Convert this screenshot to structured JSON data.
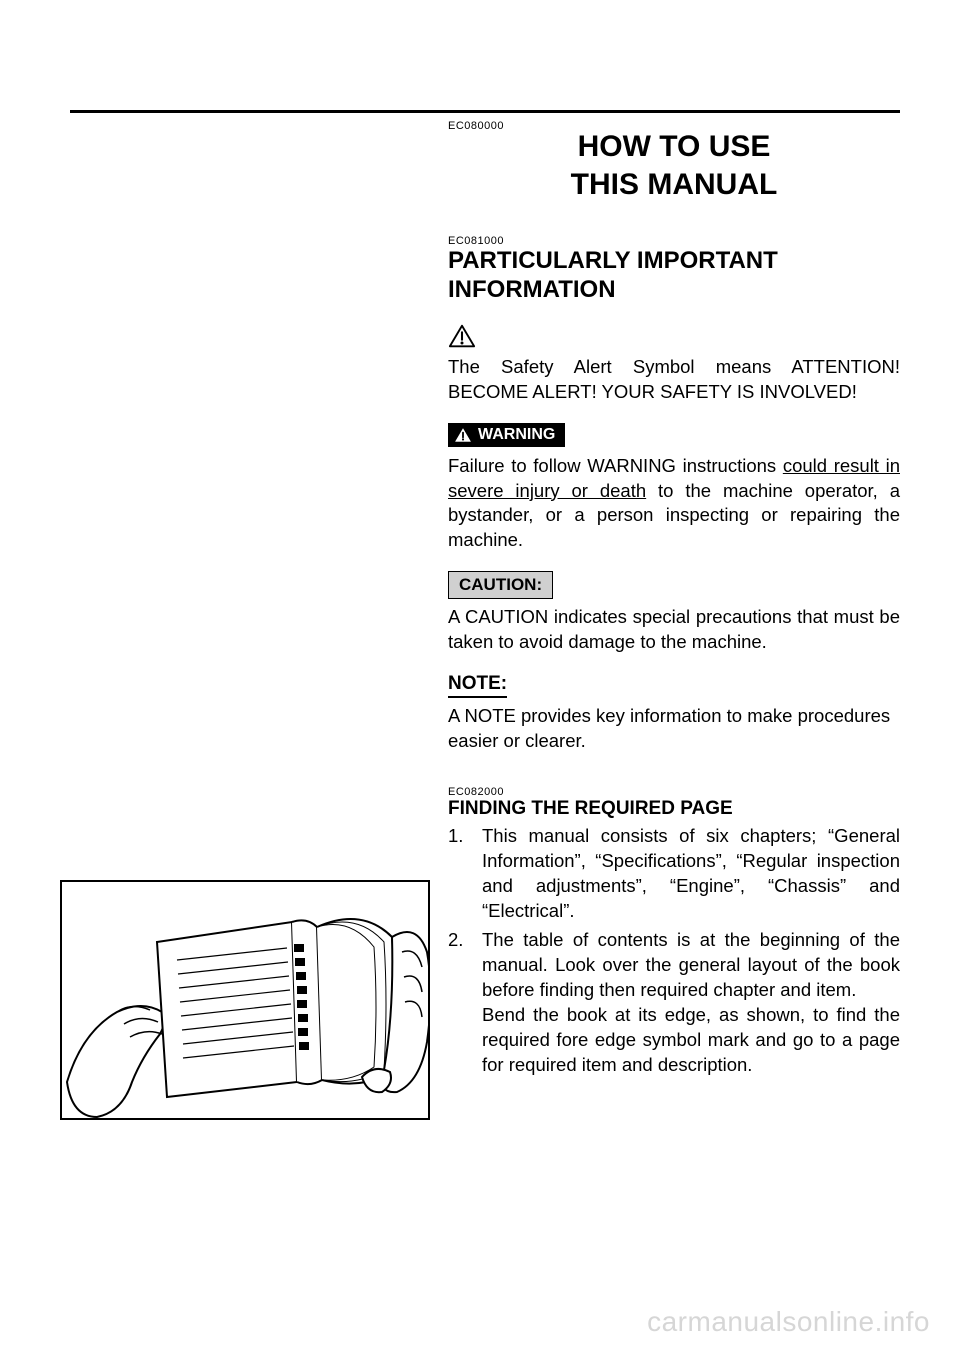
{
  "codes": {
    "title": "EC080000",
    "important": "EC081000",
    "finding": "EC082000"
  },
  "title": {
    "line1": "HOW TO USE",
    "line2": "THIS MANUAL"
  },
  "important": {
    "heading_line1": "PARTICULARLY IMPORTANT",
    "heading_line2": "INFORMATION",
    "safety_alert_text": "The Safety Alert Symbol means ATTENTION! BECOME ALERT! YOUR SAFETY IS INVOLVED!"
  },
  "warning": {
    "label": "WARNING",
    "text_prefix": "Failure to follow WARNING instructions ",
    "text_underlined": "could result in severe injury or death",
    "text_suffix": " to the machine operator, a bystander, or a person inspecting or repairing the machine."
  },
  "caution": {
    "label": "CAUTION:",
    "text": "A CAUTION indicates special precautions that must be taken to avoid damage to the machine."
  },
  "note": {
    "label": "NOTE:",
    "text": "A NOTE provides key information to make procedures easier or clearer."
  },
  "finding": {
    "heading": "FINDING THE REQUIRED PAGE",
    "items": [
      "This manual consists of six chapters; “General Information”, “Specifications”, “Regular inspection and adjustments”, “Engine”, “Chassis” and “Electrical”.",
      "The table of contents is at the beginning of the manual. Look over the general layout of the book before finding then required chapter and item.\nBend the book at its edge, as shown, to find the required fore edge symbol mark and go to a page for required item and description."
    ]
  },
  "watermark": "carmanualsonline.info",
  "colors": {
    "text": "#000000",
    "background": "#ffffff",
    "caution_bg": "#d0d0d0",
    "watermark": "#d6d6d6"
  }
}
